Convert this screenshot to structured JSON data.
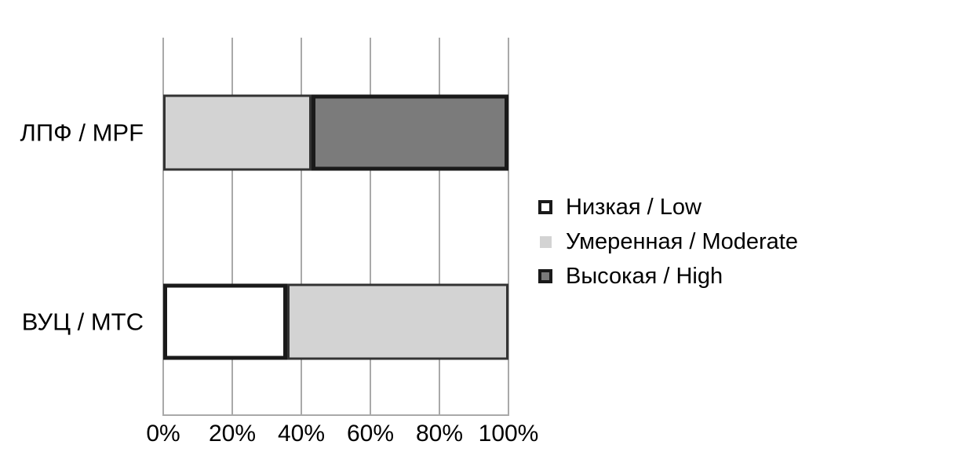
{
  "chart_data": {
    "type": "bar",
    "variant": "horizontal-stacked-100pct",
    "categories": [
      "ЛПФ / MPF",
      "ВУЦ / МТС"
    ],
    "series": [
      {
        "name": "Низкая / Low",
        "fill": "#ffffff",
        "border": "#1a1a1a",
        "legend_border": true,
        "values": [
          0,
          36
        ]
      },
      {
        "name": "Умеренная / Moderate",
        "fill": "#d3d3d3",
        "border": "#333333",
        "legend_border": false,
        "values": [
          43,
          64
        ]
      },
      {
        "name": "Высокая / High",
        "fill": "#7b7b7b",
        "border": "#1a1a1a",
        "legend_border": true,
        "values": [
          57,
          0
        ]
      }
    ],
    "x_ticks": [
      "0%",
      "20%",
      "40%",
      "60%",
      "80%",
      "100%"
    ],
    "xlim": [
      0,
      100
    ],
    "grid": true,
    "gridline_color": "#a9a9a9",
    "legend_position": "right",
    "background_color": "#ffffff",
    "text_color": "#000000",
    "title": "",
    "xlabel": "",
    "ylabel": ""
  }
}
